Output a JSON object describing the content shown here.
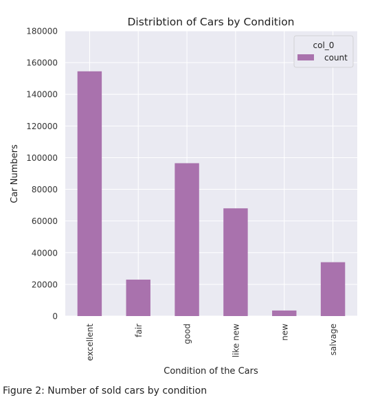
{
  "chart_data": {
    "type": "bar",
    "title": "Distribtion of Cars by Condition",
    "xlabel": "Condition of the Cars",
    "ylabel": "Car Numbers",
    "categories": [
      "excellent",
      "fair",
      "good",
      "like new",
      "new",
      "salvage"
    ],
    "series": [
      {
        "name": "count",
        "values": [
          154500,
          23000,
          96500,
          68000,
          3500,
          34000
        ]
      }
    ],
    "ylim": [
      0,
      180000
    ],
    "yticks": [
      0,
      20000,
      40000,
      60000,
      80000,
      100000,
      120000,
      140000,
      160000,
      180000
    ],
    "legend": {
      "title": "col_0",
      "position": "top-right"
    },
    "grid": true,
    "colors": {
      "bar": "#a972ad",
      "background": "#eaeaf2",
      "grid": "#ffffff"
    }
  },
  "caption": "Figure 2: Number of sold cars by condition"
}
